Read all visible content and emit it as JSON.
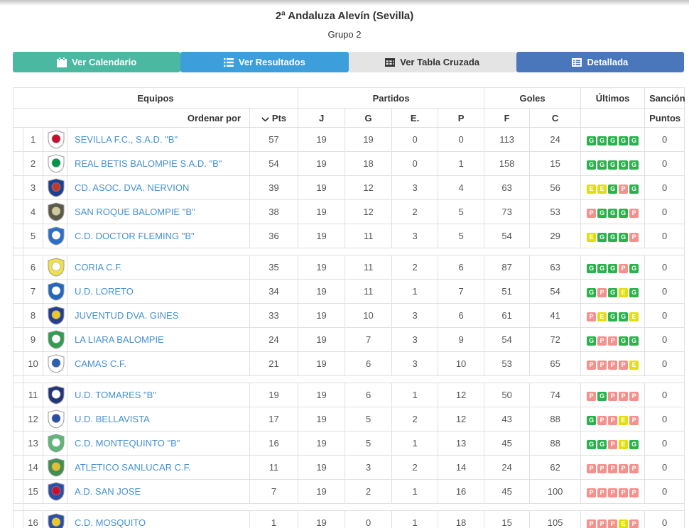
{
  "header": {
    "title": "2ª Andaluza Alevín (Sevilla)",
    "subtitle": "Grupo 2"
  },
  "tabs": [
    {
      "label": "Ver Calendario",
      "icon": "calendar-icon",
      "bg": "#4bb8a2",
      "fg": "#ffffff"
    },
    {
      "label": "Ver Resultados",
      "icon": "list-icon",
      "bg": "#3d9edc",
      "fg": "#ffffff"
    },
    {
      "label": "Ver Tabla Cruzada",
      "icon": "table-icon",
      "bg": "#e4e4e4",
      "fg": "#333333"
    },
    {
      "label": "Detallada",
      "icon": "list-alt-icon",
      "bg": "#4a77bc",
      "fg": "#ffffff"
    }
  ],
  "table": {
    "group_headers": {
      "equipos": "Equipos",
      "partidos": "Partidos",
      "goles": "Goles",
      "ultimos": "Últimos",
      "sancion": "Sanción"
    },
    "sub_headers": {
      "ordenar": "Ordenar por",
      "pts": "Pts",
      "j": "J",
      "g": "G",
      "e": "E.",
      "p": "P",
      "f": "F",
      "c": "C",
      "puntos": "Puntos"
    },
    "badge_colors": {
      "G": "#2bb24c",
      "E": "#e0e00e",
      "P": "#f4918c"
    },
    "link_color": "#4691d3",
    "rows": [
      {
        "pos": 1,
        "team": "SEVILLA F.C., S.A.D. \"B\"",
        "pts": 57,
        "j": 19,
        "g": 19,
        "e": 0,
        "p": 0,
        "f": 113,
        "c": 24,
        "last5": [
          "G",
          "G",
          "G",
          "G",
          "G"
        ],
        "sancion": 0,
        "crest": [
          "#ffffff",
          "#c8102e"
        ],
        "spacer_after": false
      },
      {
        "pos": 2,
        "team": "REAL BETIS BALOMPIE S.A.D. \"B\"",
        "pts": 54,
        "j": 19,
        "g": 18,
        "e": 0,
        "p": 1,
        "f": 158,
        "c": 15,
        "last5": [
          "G",
          "G",
          "G",
          "G",
          "G"
        ],
        "sancion": 0,
        "crest": [
          "#ffffff",
          "#00954c"
        ],
        "spacer_after": false
      },
      {
        "pos": 3,
        "team": "CD. ASOC. DVA. NERVION",
        "pts": 39,
        "j": 19,
        "g": 12,
        "e": 3,
        "p": 4,
        "f": 63,
        "c": 56,
        "last5": [
          "E",
          "E",
          "G",
          "P",
          "G"
        ],
        "sancion": 0,
        "crest": [
          "#1d3f94",
          "#c0392b"
        ],
        "spacer_after": false
      },
      {
        "pos": 4,
        "team": "SAN ROQUE BALOMPIE \"B\"",
        "pts": 38,
        "j": 19,
        "g": 12,
        "e": 2,
        "p": 5,
        "f": 73,
        "c": 53,
        "last5": [
          "P",
          "G",
          "G",
          "G",
          "P"
        ],
        "sancion": 0,
        "crest": [
          "#5a5a46",
          "#cfc9a0"
        ],
        "spacer_after": false
      },
      {
        "pos": 5,
        "team": "C.D. DOCTOR FLEMING \"B\"",
        "pts": 36,
        "j": 19,
        "g": 11,
        "e": 3,
        "p": 5,
        "f": 54,
        "c": 29,
        "last5": [
          "E",
          "G",
          "G",
          "G",
          "P"
        ],
        "sancion": 0,
        "crest": [
          "#2a6fc9",
          "#ffffff"
        ],
        "spacer_after": true
      },
      {
        "pos": 6,
        "team": "CORIA C.F.",
        "pts": 35,
        "j": 19,
        "g": 11,
        "e": 2,
        "p": 6,
        "f": 87,
        "c": 63,
        "last5": [
          "G",
          "G",
          "G",
          "P",
          "G"
        ],
        "sancion": 0,
        "crest": [
          "#f0e14a",
          "#ffffff"
        ],
        "spacer_after": false
      },
      {
        "pos": 7,
        "team": "U.D. LORETO",
        "pts": 34,
        "j": 19,
        "g": 11,
        "e": 1,
        "p": 7,
        "f": 51,
        "c": 54,
        "last5": [
          "G",
          "P",
          "G",
          "E",
          "G"
        ],
        "sancion": 0,
        "crest": [
          "#1f67c0",
          "#ffffff"
        ],
        "spacer_after": false
      },
      {
        "pos": 8,
        "team": "JUVENTUD DVA. GINES",
        "pts": 33,
        "j": 19,
        "g": 10,
        "e": 3,
        "p": 6,
        "f": 61,
        "c": 41,
        "last5": [
          "P",
          "E",
          "G",
          "G",
          "E"
        ],
        "sancion": 0,
        "crest": [
          "#243f8f",
          "#e8c929"
        ],
        "spacer_after": false
      },
      {
        "pos": 9,
        "team": "LA LIARA BALOMPIE",
        "pts": 24,
        "j": 19,
        "g": 7,
        "e": 3,
        "p": 9,
        "f": 54,
        "c": 72,
        "last5": [
          "G",
          "P",
          "P",
          "G",
          "G"
        ],
        "sancion": 0,
        "crest": [
          "#2f9e4f",
          "#ffffff"
        ],
        "spacer_after": false
      },
      {
        "pos": 10,
        "team": "CAMAS C.F.",
        "pts": 21,
        "j": 19,
        "g": 6,
        "e": 3,
        "p": 10,
        "f": 53,
        "c": 65,
        "last5": [
          "P",
          "P",
          "P",
          "P",
          "E"
        ],
        "sancion": 0,
        "crest": [
          "#ffffff",
          "#2b5fb0"
        ],
        "spacer_after": true
      },
      {
        "pos": 11,
        "team": "U.D. TOMARES \"B\"",
        "pts": 19,
        "j": 19,
        "g": 6,
        "e": 1,
        "p": 12,
        "f": 50,
        "c": 74,
        "last5": [
          "P",
          "G",
          "P",
          "P",
          "P"
        ],
        "sancion": 0,
        "crest": [
          "#23357a",
          "#ffffff"
        ],
        "spacer_after": false
      },
      {
        "pos": 12,
        "team": "U.D. BELLAVISTA",
        "pts": 17,
        "j": 19,
        "g": 5,
        "e": 2,
        "p": 12,
        "f": 43,
        "c": 88,
        "last5": [
          "G",
          "P",
          "P",
          "E",
          "P"
        ],
        "sancion": 0,
        "crest": [
          "#ffffff",
          "#2b4ea8"
        ],
        "spacer_after": false
      },
      {
        "pos": 13,
        "team": "C.D. MONTEQUINTO \"B\"",
        "pts": 16,
        "j": 19,
        "g": 5,
        "e": 1,
        "p": 13,
        "f": 45,
        "c": 88,
        "last5": [
          "G",
          "G",
          "P",
          "E",
          "G"
        ],
        "sancion": 0,
        "crest": [
          "#5cb87a",
          "#ffffff"
        ],
        "spacer_after": false
      },
      {
        "pos": 14,
        "team": "ATLETICO SANLUCAR C.F.",
        "pts": 11,
        "j": 19,
        "g": 3,
        "e": 2,
        "p": 14,
        "f": 24,
        "c": 62,
        "last5": [
          "P",
          "P",
          "P",
          "P",
          "P"
        ],
        "sancion": 0,
        "crest": [
          "#3f8f4f",
          "#e0c030"
        ],
        "spacer_after": false
      },
      {
        "pos": 15,
        "team": "A.D. SAN JOSE",
        "pts": 7,
        "j": 19,
        "g": 2,
        "e": 1,
        "p": 16,
        "f": 45,
        "c": 100,
        "last5": [
          "P",
          "P",
          "P",
          "P",
          "P"
        ],
        "sancion": 0,
        "crest": [
          "#2b4ea8",
          "#c8102e"
        ],
        "spacer_after": true
      },
      {
        "pos": 16,
        "team": "C.D. MOSQUITO",
        "pts": 1,
        "j": 19,
        "g": 0,
        "e": 1,
        "p": 18,
        "f": 15,
        "c": 105,
        "last5": [
          "P",
          "P",
          "P",
          "E",
          "P"
        ],
        "sancion": 0,
        "crest": [
          "#2b4ea8",
          "#e8c929"
        ],
        "spacer_after": false
      }
    ]
  }
}
